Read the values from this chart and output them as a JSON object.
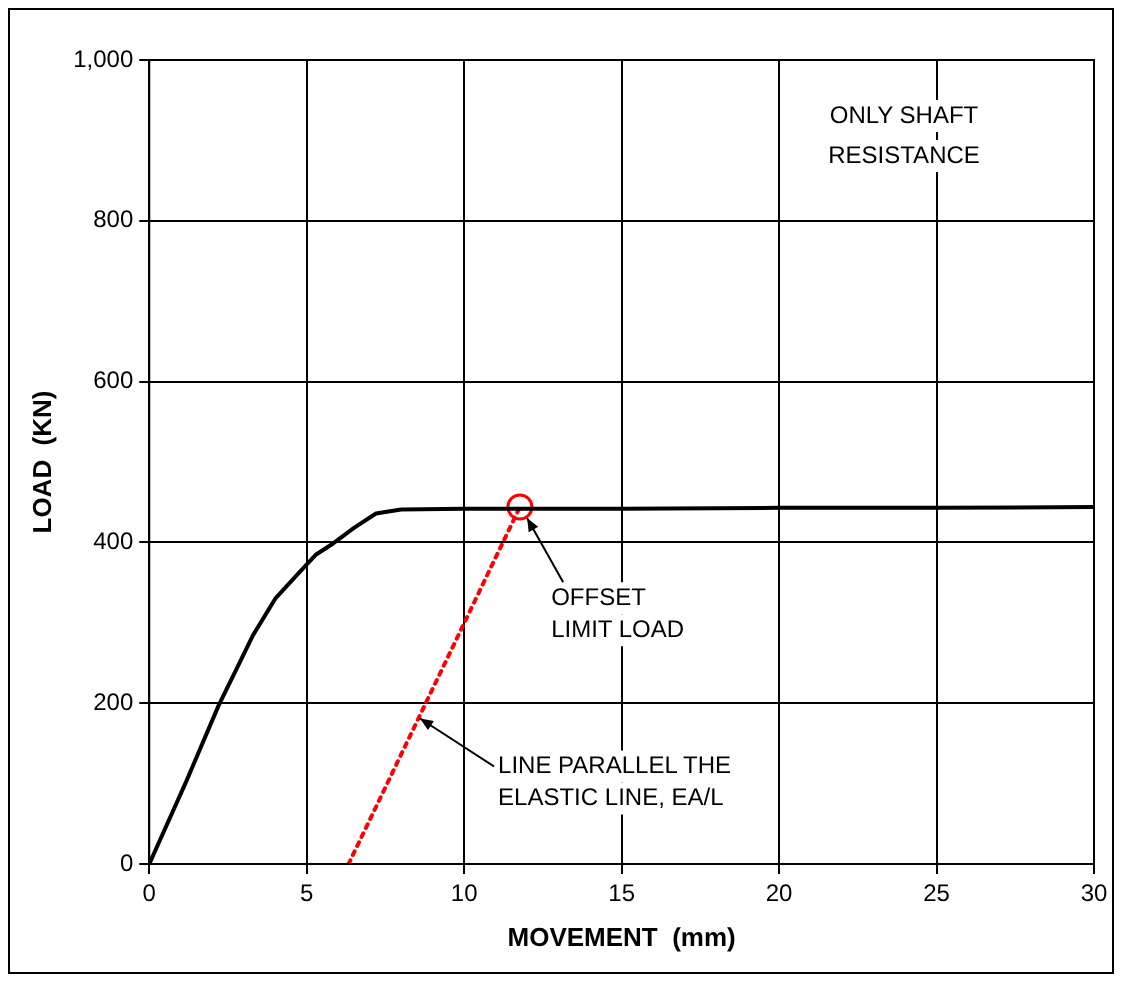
{
  "chart_data": {
    "type": "line",
    "xlabel": "MOVEMENT  (mm)",
    "ylabel": "LOAD  (KN)",
    "xlim": [
      0,
      30
    ],
    "xticks": [
      0,
      5,
      10,
      15,
      20,
      25,
      30
    ],
    "ylim": [
      0,
      1000
    ],
    "yticks": [
      0,
      200,
      400,
      600,
      800,
      {
        "value": 1000,
        "label": "1,000"
      }
    ],
    "grid": true,
    "legend": false,
    "series": [
      {
        "type": "line",
        "color": "#000000",
        "marker": "none",
        "line_style": "solid",
        "x": [
          0,
          1.2,
          2.2,
          2.8,
          3.3,
          4.0,
          4.7,
          5.3,
          5.85,
          6.5,
          7.2,
          8.0,
          10,
          15,
          20,
          25,
          30
        ],
        "values": [
          0,
          105,
          197,
          245,
          285,
          330,
          360,
          385,
          399,
          418,
          436,
          441,
          442,
          442,
          443,
          443,
          444
        ]
      },
      {
        "type": "line",
        "color": "#ff0000",
        "marker": "none",
        "line_style": "dotted",
        "x": [
          6.33,
          11.77
        ],
        "values": [
          0,
          444
        ]
      },
      {
        "type": "scatter",
        "color": "#ff0000",
        "marker": "circle",
        "x": [
          11.77
        ],
        "values": [
          444
        ]
      }
    ],
    "annotations": [
      "ONLY SHAFT RESISTANCE",
      {
        "text": "OFFSET LIMIT LOAD",
        "x": 12,
        "y": 430
      },
      {
        "text": "LINE PARALLEL THE ELASTIC LINE, EA/L",
        "x": 8.6,
        "y": 181
      }
    ]
  }
}
